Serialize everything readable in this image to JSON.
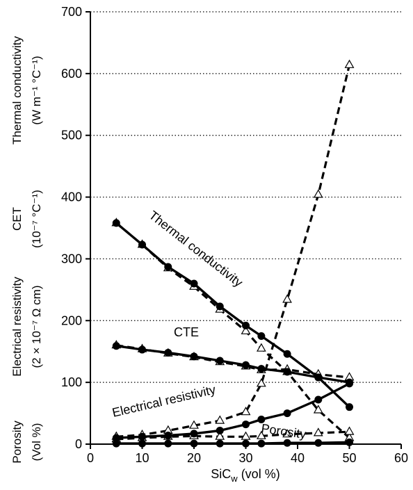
{
  "chart_data": {
    "type": "line",
    "x_axis": {
      "label_main": "SiC",
      "label_sub": "w",
      "label_rest": " (vol %)",
      "ticks": [
        0,
        10,
        20,
        30,
        40,
        50,
        60
      ],
      "range": [
        0,
        60
      ]
    },
    "y_axis": {
      "ticks": [
        0,
        100,
        200,
        300,
        400,
        500,
        600,
        700
      ],
      "range": [
        0,
        700
      ],
      "grid": "dotted horizontal"
    },
    "y_label_blocks": [
      {
        "lines": [
          "Thermal conductivity",
          "(W m⁻¹ °C⁻¹)"
        ]
      },
      {
        "lines": [
          "CET",
          "(10⁻⁷ °C⁻¹)"
        ]
      },
      {
        "lines": [
          "Electrical resistivity",
          "(2 × 10⁻⁷ Ω cm)"
        ]
      },
      {
        "lines": [
          "Porosity",
          "(Vol %)"
        ]
      }
    ],
    "annotations": [
      {
        "text": "Thermal conductivity"
      },
      {
        "text": "CTE"
      },
      {
        "text": "Electrical resistivity"
      },
      {
        "text": "Porosity"
      }
    ],
    "series": [
      {
        "label": "Thermal conductivity",
        "style": "solid",
        "marker": "filled-circle",
        "x": [
          5,
          10,
          15,
          20,
          25,
          30,
          33,
          38,
          44,
          50
        ],
        "y": [
          358,
          323,
          287,
          260,
          223,
          192,
          175,
          146,
          108,
          60
        ]
      },
      {
        "label": "Thermal conductivity",
        "style": "dashed",
        "marker": "open-triangle",
        "x": [
          5,
          10,
          15,
          20,
          25,
          30,
          33,
          38,
          44,
          50
        ],
        "y": [
          358,
          323,
          285,
          255,
          218,
          183,
          155,
          117,
          55,
          10
        ]
      },
      {
        "label": "CTE",
        "style": "solid",
        "marker": "filled-circle",
        "x": [
          5,
          10,
          15,
          20,
          25,
          30,
          33,
          38,
          44,
          50
        ],
        "y": [
          159,
          153,
          148,
          142,
          135,
          128,
          122,
          117,
          108,
          100
        ]
      },
      {
        "label": "CTE",
        "style": "dashed",
        "marker": "open-triangle",
        "x": [
          5,
          10,
          15,
          20,
          25,
          30,
          33,
          38,
          44,
          50
        ],
        "y": [
          160,
          154,
          147,
          141,
          133,
          126,
          120,
          121,
          113,
          108
        ]
      },
      {
        "label": "Electrical resistivity",
        "style": "solid",
        "marker": "filled-circle",
        "x": [
          5,
          10,
          15,
          20,
          25,
          30,
          33,
          38,
          44,
          50
        ],
        "y": [
          10,
          12,
          14,
          17,
          22,
          32,
          40,
          50,
          72,
          98
        ]
      },
      {
        "label": "Electrical resistivity",
        "style": "dashed",
        "marker": "open-triangle",
        "x": [
          5,
          10,
          15,
          20,
          25,
          30,
          33,
          38,
          44,
          50
        ],
        "y": [
          12,
          15,
          22,
          30,
          38,
          52,
          98,
          234,
          404,
          614
        ]
      },
      {
        "label": "Porosity",
        "style": "solid",
        "marker": "filled-circle",
        "x": [
          5,
          10,
          15,
          20,
          25,
          30,
          33,
          38,
          44,
          50
        ],
        "y": [
          1,
          1,
          1,
          1,
          1,
          1,
          1,
          2,
          2,
          3
        ]
      },
      {
        "label": "Porosity",
        "style": "dashed",
        "marker": "open-triangle",
        "x": [
          5,
          10,
          15,
          20,
          25,
          30,
          33,
          38,
          44,
          50
        ],
        "y": [
          8,
          10,
          12,
          13,
          12,
          12,
          13,
          16,
          18,
          20
        ]
      }
    ]
  }
}
